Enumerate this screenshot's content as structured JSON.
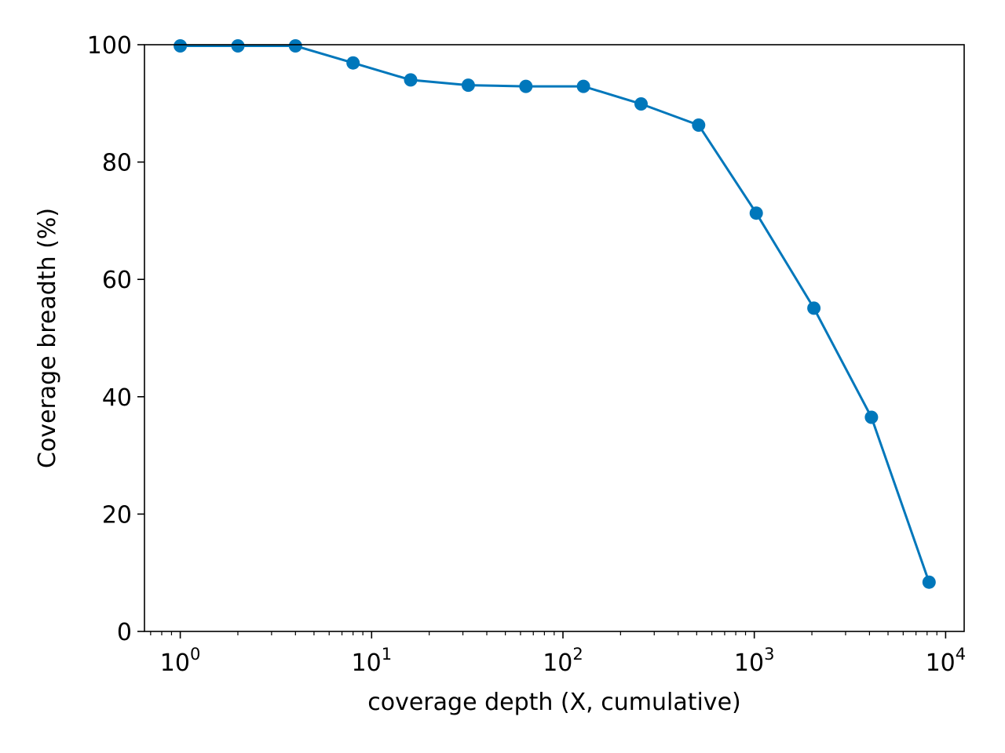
{
  "chart_data": {
    "type": "line",
    "title": "",
    "xlabel": "coverage depth (X, cumulative)",
    "ylabel": "Coverage breadth (%)",
    "xscale": "log",
    "yscale": "linear",
    "xlim": [
      0.65,
      12500
    ],
    "ylim": [
      0,
      100
    ],
    "grid": false,
    "legend": "none",
    "x_ticks": [
      {
        "base": "10",
        "exp": "0"
      },
      {
        "base": "10",
        "exp": "1"
      },
      {
        "base": "10",
        "exp": "2"
      },
      {
        "base": "10",
        "exp": "3"
      },
      {
        "base": "10",
        "exp": "4"
      }
    ],
    "y_ticks": [
      "0",
      "20",
      "40",
      "60",
      "80",
      "100"
    ],
    "series": [
      {
        "color": "#0077bb",
        "marker": "circle",
        "x": [
          1,
          2,
          4,
          8,
          16,
          32,
          64,
          128,
          256,
          512,
          1024,
          2048,
          4096,
          8192
        ],
        "y": [
          99.8,
          99.8,
          99.8,
          96.9,
          94.0,
          93.1,
          92.9,
          92.9,
          89.9,
          86.3,
          71.3,
          55.1,
          36.5,
          8.4
        ]
      }
    ]
  }
}
